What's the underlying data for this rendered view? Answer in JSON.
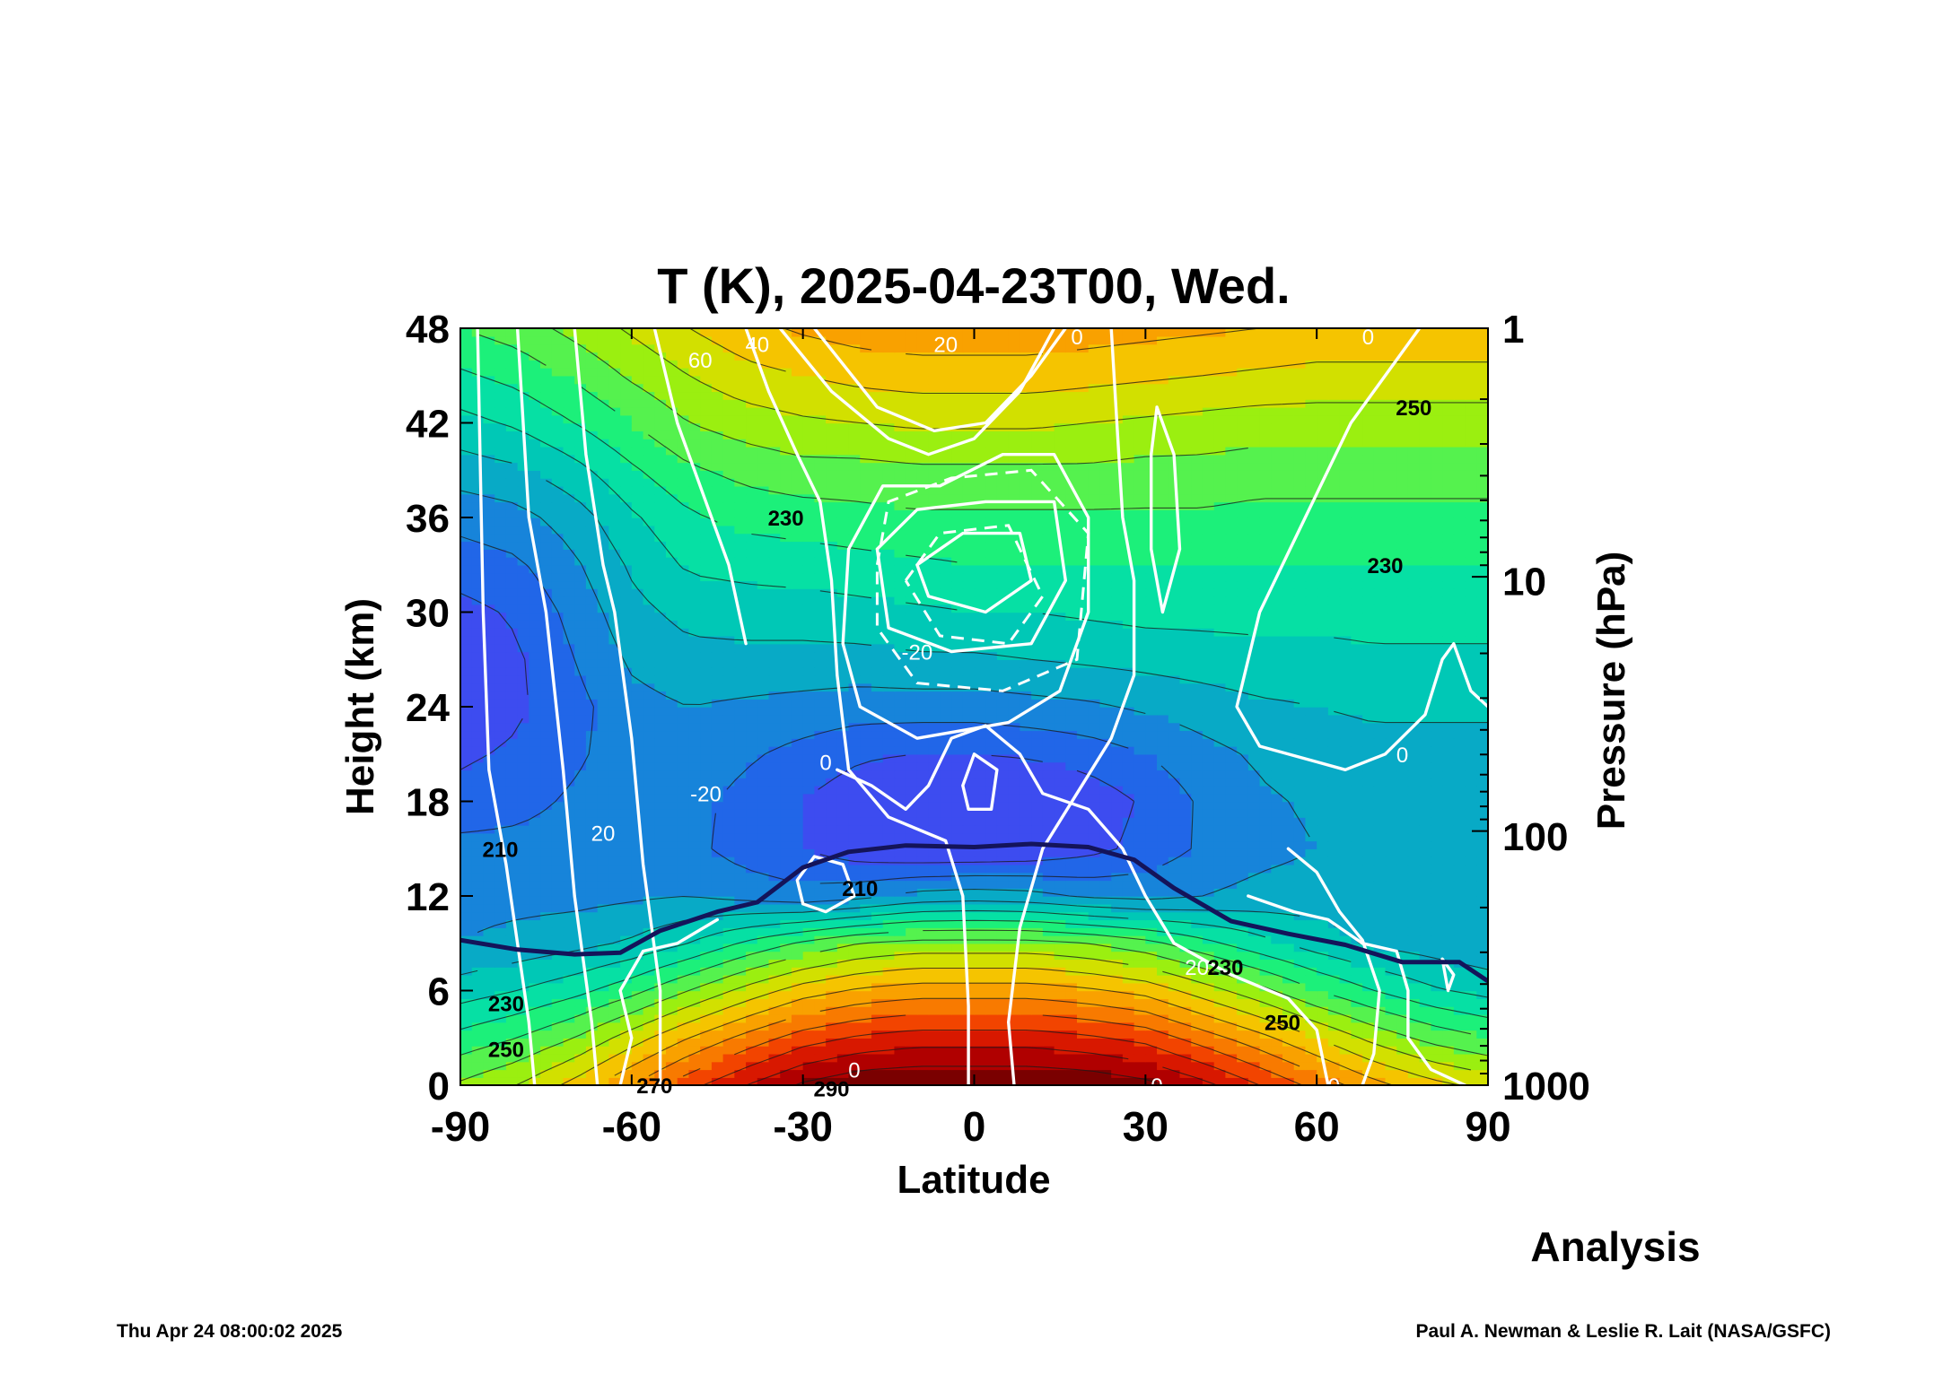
{
  "chart_data": {
    "type": "heatmap",
    "title": "T (K), 2025-04-23T00, Wed.",
    "xlabel": "Latitude",
    "ylabel_left": "Height (km)",
    "ylabel_right": "Pressure (hPa)",
    "xlim": [
      -90,
      90
    ],
    "ylim": [
      0,
      48
    ],
    "x_ticks": [
      "-90",
      "-60",
      "-30",
      "0",
      "30",
      "60",
      "90"
    ],
    "y_ticks": [
      "0",
      "6",
      "12",
      "18",
      "24",
      "30",
      "36",
      "42",
      "48"
    ],
    "pressure_ticks": [
      {
        "label": "1",
        "height_km": 48
      },
      {
        "label": "10",
        "height_km": 32
      },
      {
        "label": "100",
        "height_km": 15.8
      },
      {
        "label": "1000",
        "height_km": 0
      }
    ],
    "latitudes": [
      -90,
      -80,
      -70,
      -60,
      -50,
      -40,
      -30,
      -20,
      -10,
      0,
      10,
      20,
      30,
      40,
      50,
      60,
      70,
      80,
      90
    ],
    "heights_km": [
      0,
      3,
      6,
      9,
      12,
      15,
      18,
      21,
      24,
      27,
      30,
      33,
      36,
      39,
      42,
      45,
      48
    ],
    "temperature_K": [
      [
        247,
        252,
        260,
        270,
        280,
        288,
        295,
        299,
        300,
        300,
        300,
        299,
        296,
        290,
        282,
        274,
        266,
        260,
        256
      ],
      [
        236,
        240,
        246,
        255,
        264,
        272,
        279,
        283,
        285,
        285,
        285,
        283,
        280,
        273,
        266,
        258,
        250,
        244,
        240
      ],
      [
        225,
        228,
        232,
        238,
        246,
        254,
        261,
        265,
        267,
        267,
        267,
        265,
        262,
        255,
        248,
        240,
        234,
        229,
        226
      ],
      [
        216,
        218,
        220,
        223,
        228,
        235,
        241,
        246,
        248,
        248,
        248,
        246,
        242,
        236,
        230,
        225,
        221,
        219,
        217
      ],
      [
        214,
        214,
        214,
        215,
        216,
        214,
        212,
        214,
        218,
        219,
        218,
        215,
        214,
        216,
        218,
        219,
        219,
        219,
        218
      ],
      [
        212,
        212,
        213,
        213,
        212,
        207,
        204,
        200,
        198,
        198,
        199,
        202,
        206,
        211,
        214,
        216,
        217,
        217,
        217
      ],
      [
        206,
        208,
        211,
        213,
        212,
        208,
        204,
        200,
        196,
        194,
        196,
        200,
        205,
        211,
        215,
        217,
        218,
        218,
        218
      ],
      [
        203,
        205,
        209,
        213,
        214,
        211,
        208,
        205,
        204,
        204,
        205,
        207,
        210,
        214,
        217,
        219,
        220,
        220,
        220
      ],
      [
        200,
        203,
        208,
        214,
        216,
        215,
        214,
        213,
        213,
        213,
        214,
        215,
        217,
        219,
        221,
        222,
        223,
        223,
        223
      ],
      [
        200,
        203,
        210,
        217,
        220,
        220,
        220,
        220,
        221,
        221,
        222,
        223,
        224,
        225,
        226,
        226,
        227,
        227,
        227
      ],
      [
        202,
        205,
        212,
        220,
        224,
        225,
        225,
        226,
        227,
        228,
        228,
        229,
        230,
        230,
        230,
        230,
        230,
        230,
        230
      ],
      [
        207,
        209,
        215,
        223,
        229,
        230,
        231,
        232,
        233,
        234,
        234,
        234,
        234,
        234,
        234,
        234,
        234,
        234,
        234
      ],
      [
        212,
        214,
        219,
        227,
        233,
        236,
        237,
        238,
        239,
        239,
        239,
        239,
        239,
        239,
        238,
        238,
        238,
        238,
        238
      ],
      [
        219,
        221,
        226,
        233,
        239,
        242,
        244,
        244,
        245,
        245,
        245,
        245,
        244,
        244,
        243,
        243,
        243,
        243,
        243
      ],
      [
        226,
        229,
        234,
        240,
        246,
        249,
        251,
        252,
        253,
        253,
        253,
        252,
        251,
        250,
        249,
        249,
        249,
        249,
        249
      ],
      [
        233,
        236,
        241,
        247,
        252,
        256,
        258,
        260,
        261,
        261,
        261,
        260,
        259,
        258,
        257,
        256,
        256,
        256,
        256
      ],
      [
        240,
        243,
        248,
        253,
        258,
        262,
        265,
        267,
        268,
        268,
        268,
        267,
        266,
        265,
        264,
        263,
        263,
        263,
        263
      ]
    ],
    "contour_labels": [
      {
        "text": "250",
        "lat": 77,
        "h": 43
      },
      {
        "text": "230",
        "lat": 72,
        "h": 33
      },
      {
        "text": "230",
        "lat": -33,
        "h": 36
      },
      {
        "text": "210",
        "lat": -83,
        "h": 15
      },
      {
        "text": "210",
        "lat": -20,
        "h": 12.5
      },
      {
        "text": "230",
        "lat": -82,
        "h": 5.2
      },
      {
        "text": "250",
        "lat": -82,
        "h": 2.3
      },
      {
        "text": "270",
        "lat": -56,
        "h": 0
      },
      {
        "text": "290",
        "lat": -25,
        "h": -0.2
      },
      {
        "text": "230",
        "lat": 44,
        "h": 7.5
      },
      {
        "text": "250",
        "lat": 54,
        "h": 4
      }
    ],
    "wind_labels": [
      {
        "text": "60",
        "lat": -48,
        "h": 46
      },
      {
        "text": "40",
        "lat": -38,
        "h": 47
      },
      {
        "text": "20",
        "lat": -5,
        "h": 47
      },
      {
        "text": "0",
        "lat": 18,
        "h": 47.5
      },
      {
        "text": "0",
        "lat": 69,
        "h": 47.5
      },
      {
        "text": "-20",
        "lat": -10,
        "h": 27.5
      },
      {
        "text": "0",
        "lat": -26,
        "h": 20.5
      },
      {
        "text": "-20",
        "lat": -47,
        "h": 18.5
      },
      {
        "text": "20",
        "lat": -65,
        "h": 16
      },
      {
        "text": "20",
        "lat": 39,
        "h": 7.5
      },
      {
        "text": "0",
        "lat": 75,
        "h": 21
      },
      {
        "text": "0",
        "lat": -21,
        "h": 1
      },
      {
        "text": "0",
        "lat": 32,
        "h": 0
      },
      {
        "text": "0",
        "lat": 63,
        "h": 0
      }
    ],
    "colorscale": [
      "#7a0000",
      "#b00000",
      "#d81800",
      "#f24400",
      "#f87a00",
      "#f9a100",
      "#f5c400",
      "#d2e000",
      "#9bef10",
      "#55f24e",
      "#1cf07a",
      "#06e0a4",
      "#00c8b6",
      "#08aac6",
      "#1784da",
      "#2166e8",
      "#3d4cf0"
    ]
  },
  "annotations": {
    "analysis": "Analysis",
    "timestamp": "Thu Apr 24 08:00:02 2025",
    "credit": "Paul A. Newman & Leslie R. Lait (NASA/GSFC)"
  }
}
